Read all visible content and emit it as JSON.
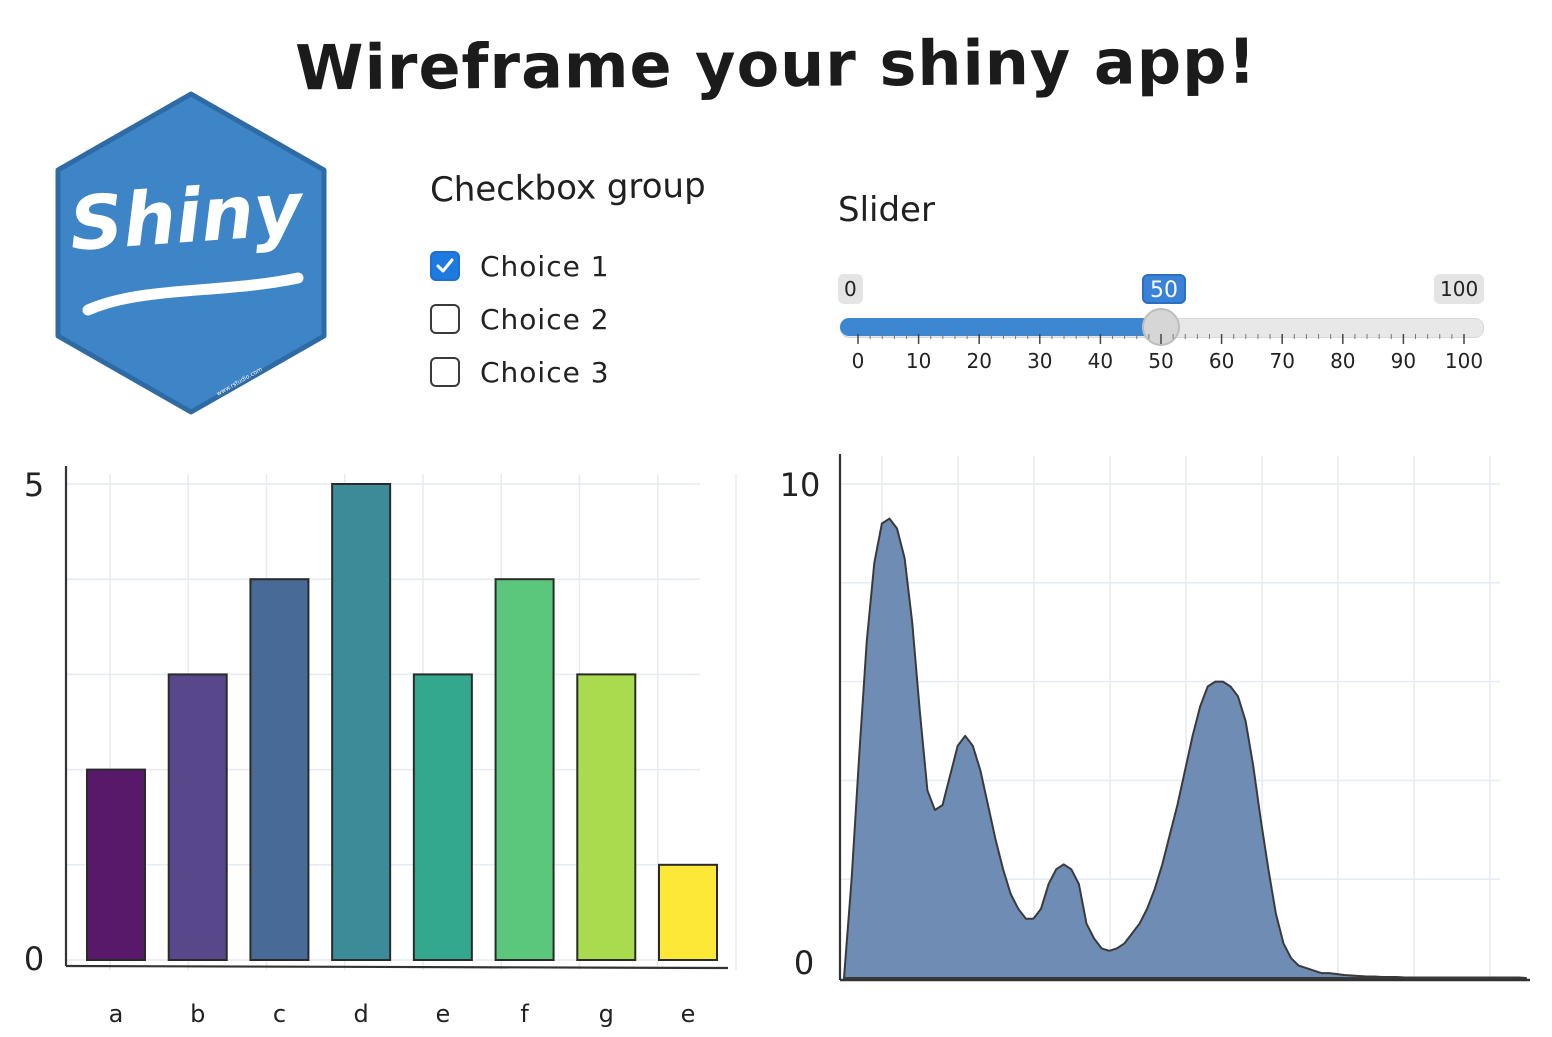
{
  "title": "Wireframe your shiny app!",
  "logo": {
    "text": "Shiny",
    "fine_print": "www.rstudio.com",
    "color": "#3d85c6"
  },
  "checkbox_group": {
    "label": "Checkbox group",
    "choices": [
      {
        "label": "Choice 1",
        "checked": true
      },
      {
        "label": "Choice 2",
        "checked": false
      },
      {
        "label": "Choice 3",
        "checked": false
      }
    ]
  },
  "slider": {
    "label": "Slider",
    "min": 0,
    "max": 100,
    "value": 50,
    "min_label": "0",
    "max_label": "100",
    "value_label": "50",
    "ticks": [
      "0",
      "10",
      "20",
      "30",
      "40",
      "50",
      "60",
      "70",
      "80",
      "90",
      "100"
    ],
    "accent": "#3c87d0"
  },
  "chart_data": [
    {
      "type": "bar",
      "categories": [
        "a",
        "b",
        "c",
        "d",
        "e",
        "f",
        "g",
        "e"
      ],
      "values": [
        2,
        3,
        4,
        5,
        3,
        4,
        3,
        1
      ],
      "colors": [
        "#59196a",
        "#58488b",
        "#476a96",
        "#3c8b98",
        "#33a88f",
        "#5ac77c",
        "#a8dc4e",
        "#fde837"
      ],
      "ylim": [
        0,
        5
      ],
      "ytick_labels": [
        "0",
        "5"
      ],
      "grid": true
    },
    {
      "type": "area",
      "x": [
        0,
        1,
        2,
        3,
        4,
        5,
        6,
        7,
        8,
        9,
        10,
        11,
        12,
        13,
        14,
        15,
        16,
        17,
        18,
        19,
        20,
        21,
        22,
        23,
        24,
        25,
        26,
        27,
        28,
        29,
        30,
        31,
        32,
        33,
        34,
        35,
        36,
        37,
        38,
        39,
        40,
        41,
        42,
        43,
        44,
        45,
        46,
        47,
        48,
        49,
        50,
        51,
        52,
        53,
        54,
        55,
        56,
        57,
        58,
        59,
        60,
        61,
        62,
        63,
        64,
        65,
        66,
        67,
        68,
        69,
        70,
        71,
        72,
        73,
        74,
        75,
        76,
        77,
        78,
        79,
        80,
        81,
        82,
        83,
        84,
        85,
        86,
        87,
        88,
        89,
        90
      ],
      "values": [
        0,
        2.0,
        4.5,
        6.8,
        8.4,
        9.2,
        9.3,
        9.1,
        8.5,
        7.2,
        5.4,
        3.8,
        3.4,
        3.5,
        4.1,
        4.7,
        4.9,
        4.7,
        4.2,
        3.5,
        2.8,
        2.2,
        1.7,
        1.4,
        1.2,
        1.2,
        1.4,
        1.9,
        2.2,
        2.3,
        2.2,
        1.9,
        1.1,
        0.8,
        0.6,
        0.55,
        0.6,
        0.7,
        0.9,
        1.1,
        1.4,
        1.8,
        2.3,
        2.9,
        3.5,
        4.2,
        4.9,
        5.5,
        5.9,
        6.0,
        6.0,
        5.9,
        5.7,
        5.2,
        4.3,
        3.2,
        2.2,
        1.3,
        0.7,
        0.4,
        0.25,
        0.2,
        0.15,
        0.1,
        0.1,
        0.08,
        0.06,
        0.05,
        0.04,
        0.03,
        0.03,
        0.02,
        0.02,
        0.02,
        0.01,
        0.01,
        0.01,
        0.01,
        0.01,
        0.01,
        0.01,
        0.01,
        0.01,
        0.01,
        0.01,
        0.01,
        0.01,
        0.01,
        0.01,
        0.01,
        0
      ],
      "color": "#6f8db4",
      "ylim": [
        0,
        10
      ],
      "ytick_labels": [
        "0",
        "10"
      ],
      "grid": true
    }
  ]
}
